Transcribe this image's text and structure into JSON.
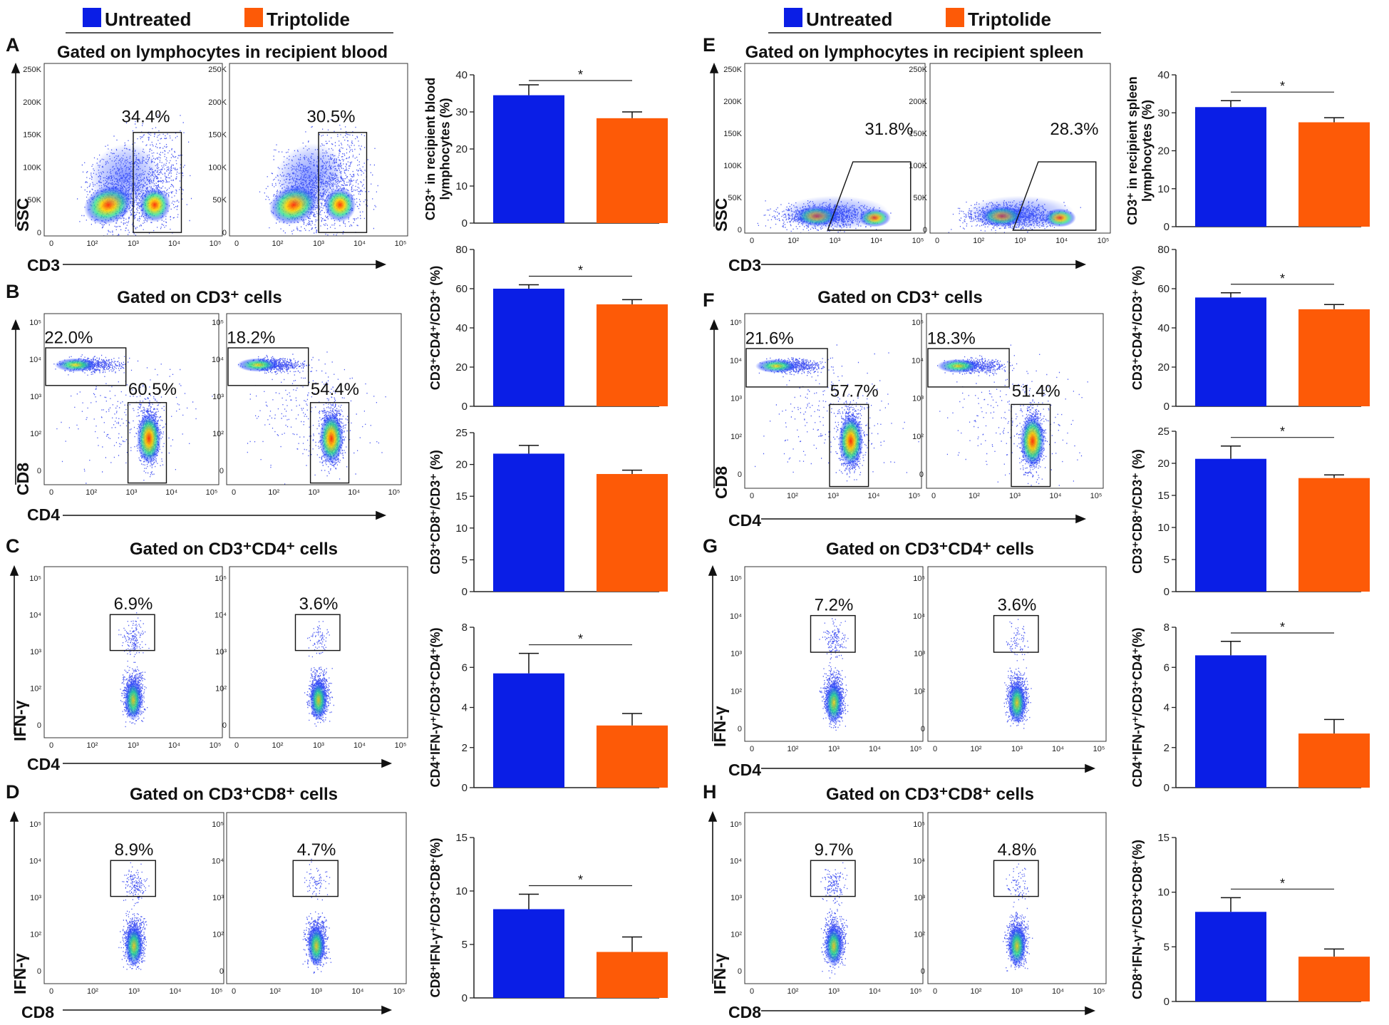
{
  "legend": {
    "untreated": "Untreated",
    "triptolide": "Triptolide"
  },
  "colors": {
    "untreated": "#0a1ee6",
    "triptolide": "#fd5a07"
  },
  "flow_axis_ticks": {
    "ssc": [
      "250K",
      "200K",
      "150K",
      "100K",
      "50K",
      "0"
    ],
    "log": [
      "0",
      "10²",
      "10³",
      "10⁴",
      "10⁵"
    ],
    "log_y": [
      "10⁵",
      "10⁴",
      "10³",
      "10²",
      "0"
    ]
  },
  "chart_data": [
    {
      "panel": "A",
      "type": "flow-scatter",
      "title": "Gated on lymphocytes in recipient blood",
      "xlabel": "CD3",
      "ylabel": "SSC",
      "gates": [
        "34.4%",
        "30.5%"
      ]
    },
    {
      "panel": "B",
      "type": "flow-scatter",
      "title": "Gated on CD3⁺ cells",
      "xlabel": "CD4",
      "ylabel": "CD8",
      "gates": [
        "22.0%",
        "60.5%",
        "18.2%",
        "54.4%"
      ]
    },
    {
      "panel": "C",
      "type": "flow-scatter",
      "title": "Gated on CD3⁺CD4⁺ cells",
      "xlabel": "CD4",
      "ylabel": "IFN-γ",
      "gates": [
        "6.9%",
        "3.6%"
      ]
    },
    {
      "panel": "D",
      "type": "flow-scatter",
      "title": "Gated on CD3⁺CD8⁺ cells",
      "xlabel": "CD8",
      "ylabel": "IFN-γ",
      "gates": [
        "8.9%",
        "4.7%"
      ]
    },
    {
      "panel": "E",
      "type": "flow-scatter",
      "title": "Gated on lymphocytes in recipient spleen",
      "xlabel": "CD3",
      "ylabel": "SSC",
      "gates": [
        "31.8%",
        "28.3%"
      ]
    },
    {
      "panel": "F",
      "type": "flow-scatter",
      "title": "Gated on CD3⁺ cells",
      "xlabel": "CD4",
      "ylabel": "CD8",
      "gates": [
        "21.6%",
        "57.7%",
        "18.3%",
        "51.4%"
      ]
    },
    {
      "panel": "G",
      "type": "flow-scatter",
      "title": "Gated on CD3⁺CD4⁺ cells",
      "xlabel": "CD4",
      "ylabel": "IFN-γ",
      "gates": [
        "7.2%",
        "3.6%"
      ]
    },
    {
      "panel": "H",
      "type": "flow-scatter",
      "title": "Gated on CD3⁺CD8⁺ cells",
      "xlabel": "CD8",
      "ylabel": "IFN-γ",
      "gates": [
        "9.7%",
        "4.8%"
      ]
    },
    {
      "type": "bar",
      "group": "blood",
      "ylabel": "CD3⁺ in recipient blood lymphocytes (%)",
      "ylim": [
        0,
        40
      ],
      "yticks": [
        "0",
        "10",
        "20",
        "30",
        "40"
      ],
      "categories": [
        "Untreated",
        "Triptolide"
      ],
      "values": [
        34.5,
        28.3
      ],
      "errors": [
        2.8,
        1.7
      ],
      "significance": "*"
    },
    {
      "type": "bar",
      "group": "blood",
      "ylabel": "CD3⁺CD4⁺/CD3⁺ (%)",
      "ylim": [
        0,
        80
      ],
      "yticks": [
        "0",
        "20",
        "40",
        "60",
        "80"
      ],
      "categories": [
        "Untreated",
        "Triptolide"
      ],
      "values": [
        60,
        52
      ],
      "errors": [
        2,
        2.4
      ],
      "significance": "*"
    },
    {
      "type": "bar",
      "group": "blood",
      "ylabel": "CD3⁺CD8⁺/CD3⁺ (%)",
      "ylim": [
        0,
        25
      ],
      "yticks": [
        "0",
        "5",
        "10",
        "15",
        "20",
        "25"
      ],
      "categories": [
        "Untreated",
        "Triptolide"
      ],
      "values": [
        21.7,
        18.5
      ],
      "errors": [
        1.3,
        0.6
      ],
      "significance": ""
    },
    {
      "type": "bar",
      "group": "blood",
      "ylabel": "CD4⁺IFN-γ⁺/CD3⁺CD4⁺(%)",
      "ylim": [
        0,
        8
      ],
      "yticks": [
        "0",
        "2",
        "4",
        "6",
        "8"
      ],
      "categories": [
        "Untreated",
        "Triptolide"
      ],
      "values": [
        5.7,
        3.1
      ],
      "errors": [
        1.0,
        0.6
      ],
      "significance": "*"
    },
    {
      "type": "bar",
      "group": "blood",
      "ylabel": "CD8⁺IFN-γ⁺/CD3⁺CD8⁺(%)",
      "ylim": [
        0,
        15
      ],
      "yticks": [
        "0",
        "5",
        "10",
        "15"
      ],
      "categories": [
        "Untreated",
        "Triptolide"
      ],
      "values": [
        8.3,
        4.3
      ],
      "errors": [
        1.4,
        1.4
      ],
      "significance": "*"
    },
    {
      "type": "bar",
      "group": "spleen",
      "ylabel": "CD3⁺ in recipient spleen lymphocytes (%)",
      "ylim": [
        0,
        40
      ],
      "yticks": [
        "0",
        "10",
        "20",
        "30",
        "40"
      ],
      "categories": [
        "Untreated",
        "Triptolide"
      ],
      "values": [
        31.5,
        27.5
      ],
      "errors": [
        1.7,
        1.2
      ],
      "significance": "*"
    },
    {
      "type": "bar",
      "group": "spleen",
      "ylabel": "CD3⁺CD4⁺/CD3⁺ (%)",
      "ylim": [
        0,
        80
      ],
      "yticks": [
        "0",
        "20",
        "40",
        "60",
        "80"
      ],
      "categories": [
        "Untreated",
        "Triptolide"
      ],
      "values": [
        55.5,
        49.5
      ],
      "errors": [
        2.4,
        2.4
      ],
      "significance": "*"
    },
    {
      "type": "bar",
      "group": "spleen",
      "ylabel": "CD3⁺CD8⁺/CD3⁺ (%)",
      "ylim": [
        0,
        25
      ],
      "yticks": [
        "0",
        "5",
        "10",
        "15",
        "20",
        "25"
      ],
      "categories": [
        "Untreated",
        "Triptolide"
      ],
      "values": [
        20.7,
        17.7
      ],
      "errors": [
        2.0,
        0.5
      ],
      "significance": "*"
    },
    {
      "type": "bar",
      "group": "spleen",
      "ylabel": "CD4⁺IFN-γ⁺/CD3⁺CD4⁺(%)",
      "ylim": [
        0,
        8
      ],
      "yticks": [
        "0",
        "2",
        "4",
        "6",
        "8"
      ],
      "categories": [
        "Untreated",
        "Triptolide"
      ],
      "values": [
        6.6,
        2.7
      ],
      "errors": [
        0.7,
        0.7
      ],
      "significance": "*"
    },
    {
      "type": "bar",
      "group": "spleen",
      "ylabel": "CD8⁺IFN-γ⁺/CD3⁺CD8⁺(%)",
      "ylim": [
        0,
        15
      ],
      "yticks": [
        "0",
        "5",
        "10",
        "15"
      ],
      "categories": [
        "Untreated",
        "Triptolide"
      ],
      "values": [
        8.2,
        4.1
      ],
      "errors": [
        1.3,
        0.7
      ],
      "significance": "*"
    }
  ]
}
